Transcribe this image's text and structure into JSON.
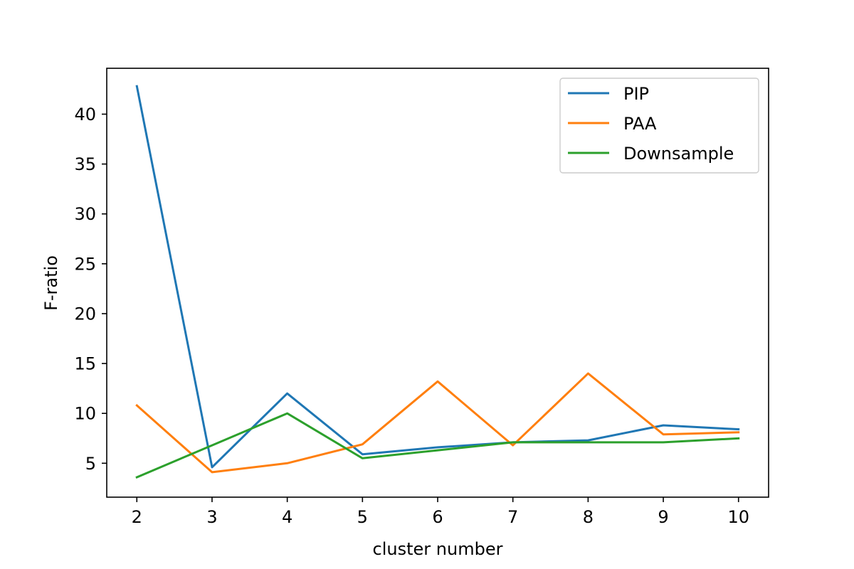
{
  "chart_data": {
    "type": "line",
    "title": "",
    "xlabel": "cluster number",
    "ylabel": "F-ratio",
    "x": [
      2,
      3,
      4,
      5,
      6,
      7,
      8,
      9,
      10
    ],
    "xticks": [
      2,
      3,
      4,
      5,
      6,
      7,
      8,
      9,
      10
    ],
    "yticks": [
      5,
      10,
      15,
      20,
      25,
      30,
      35,
      40
    ],
    "xlim": [
      1.6,
      10.4
    ],
    "ylim": [
      1.6,
      44.6
    ],
    "grid": false,
    "legend_position": "top-right",
    "series": [
      {
        "name": "PIP",
        "color": "#1f77b4",
        "values": [
          42.8,
          4.6,
          12.0,
          5.9,
          6.6,
          7.1,
          7.3,
          8.8,
          8.4
        ]
      },
      {
        "name": "PAA",
        "color": "#ff7f0e",
        "values": [
          10.8,
          4.1,
          5.0,
          6.9,
          13.2,
          6.8,
          14.0,
          7.9,
          8.1
        ]
      },
      {
        "name": "Downsample",
        "color": "#2ca02c",
        "values": [
          3.6,
          6.8,
          10.0,
          5.5,
          6.3,
          7.1,
          7.1,
          7.1,
          7.5
        ]
      }
    ]
  }
}
